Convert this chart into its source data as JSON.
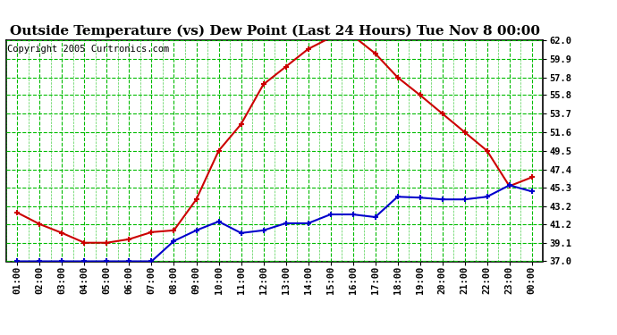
{
  "title": "Outside Temperature (vs) Dew Point (Last 24 Hours) Tue Nov 8 00:00",
  "copyright": "Copyright 2005 Curtronics.com",
  "x_labels": [
    "01:00",
    "02:00",
    "03:00",
    "04:00",
    "05:00",
    "06:00",
    "07:00",
    "08:00",
    "09:00",
    "10:00",
    "11:00",
    "12:00",
    "13:00",
    "14:00",
    "15:00",
    "16:00",
    "17:00",
    "18:00",
    "19:00",
    "20:00",
    "21:00",
    "22:00",
    "23:00",
    "00:00"
  ],
  "temp_data": [
    42.5,
    41.2,
    40.2,
    39.1,
    39.1,
    39.5,
    40.3,
    40.5,
    44.0,
    49.5,
    52.5,
    57.0,
    59.0,
    61.0,
    62.3,
    62.5,
    60.5,
    57.8,
    55.8,
    53.7,
    51.6,
    49.5,
    45.5,
    46.5
  ],
  "dew_data": [
    37.0,
    37.0,
    37.0,
    37.0,
    37.0,
    37.0,
    37.0,
    39.3,
    40.5,
    41.5,
    40.2,
    40.5,
    41.3,
    41.3,
    42.3,
    42.3,
    42.0,
    44.3,
    44.2,
    44.0,
    44.0,
    44.3,
    45.6,
    44.9
  ],
  "temp_color": "#cc0000",
  "dew_color": "#0000cc",
  "grid_color": "#00bb00",
  "bg_color": "#ffffff",
  "plot_bg_color": "#ffffff",
  "border_color": "#000000",
  "ylim": [
    37.0,
    62.0
  ],
  "yticks": [
    37.0,
    39.1,
    41.2,
    43.2,
    45.3,
    47.4,
    49.5,
    51.6,
    53.7,
    55.8,
    57.8,
    59.9,
    62.0
  ],
  "title_fontsize": 11,
  "tick_fontsize": 7.5,
  "copyright_fontsize": 7.5
}
